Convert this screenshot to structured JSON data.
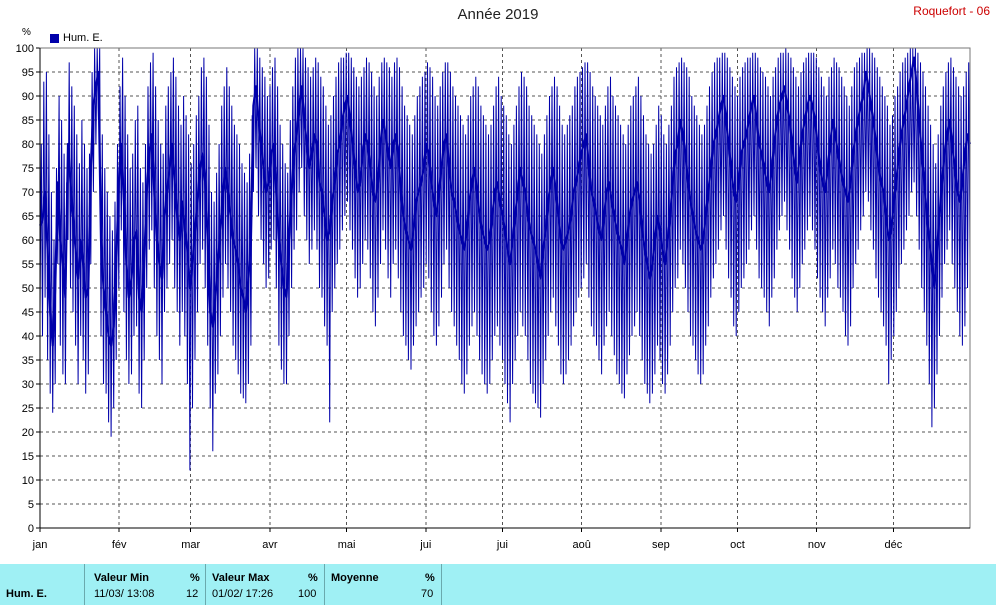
{
  "header": {
    "title": "Année 2019",
    "station": "Roquefort - 06",
    "y_unit": "%",
    "legend_label": "Hum. E."
  },
  "colors": {
    "series": "#0000aa",
    "grid": "#555555",
    "station": "#cc0000",
    "stats_bg": "#9ff0f4"
  },
  "chart_data": {
    "type": "line",
    "title": "Année 2019",
    "xlabel": "",
    "ylabel": "%",
    "ylim": [
      0,
      100
    ],
    "yticks": [
      0,
      5,
      10,
      15,
      20,
      25,
      30,
      35,
      40,
      45,
      50,
      55,
      60,
      65,
      70,
      75,
      80,
      85,
      90,
      95,
      100
    ],
    "x_tick_labels": [
      "jan",
      "fév",
      "mar",
      "avr",
      "mai",
      "jui",
      "jui",
      "aoû",
      "sep",
      "oct",
      "nov",
      "déc"
    ],
    "x_tick_days": [
      1,
      32,
      60,
      91,
      121,
      152,
      182,
      213,
      244,
      274,
      305,
      335
    ],
    "xlim_days": [
      1,
      365
    ],
    "grid": true,
    "legend_position": "top-left",
    "series": [
      {
        "name": "Hum. E.",
        "style": "daily min-max envelope (thin) and daily mean (thick)",
        "daily_mean": [
          63,
          64,
          70,
          58,
          45,
          38,
          50,
          72,
          60,
          55,
          48,
          80,
          72,
          65,
          58,
          52,
          60,
          55,
          48,
          50,
          75,
          88,
          92,
          95,
          60,
          50,
          45,
          40,
          38,
          42,
          55,
          72,
          80,
          68,
          55,
          48,
          52,
          60,
          62,
          48,
          45,
          55,
          70,
          78,
          82,
          70,
          60,
          55,
          52,
          65,
          70,
          75,
          80,
          72,
          65,
          60,
          68,
          62,
          58,
          50,
          55,
          62,
          68,
          75,
          78,
          72,
          60,
          45,
          42,
          48,
          55,
          62,
          70,
          75,
          70,
          65,
          60,
          58,
          55,
          50,
          48,
          45,
          52,
          60,
          88,
          92,
          85,
          80,
          75,
          70,
          72,
          78,
          80,
          70,
          60,
          55,
          50,
          48,
          60,
          70,
          78,
          82,
          88,
          92,
          85,
          80,
          75,
          78,
          82,
          80,
          72,
          70,
          65,
          60,
          62,
          68,
          72,
          78,
          80,
          85,
          88,
          90,
          85,
          80,
          75,
          70,
          72,
          78,
          82,
          80,
          75,
          70,
          68,
          72,
          80,
          85,
          82,
          78,
          75,
          80,
          82,
          78,
          70,
          65,
          62,
          60,
          58,
          62,
          68,
          70,
          72,
          75,
          80,
          78,
          72,
          68,
          65,
          70,
          75,
          80,
          82,
          75,
          70,
          68,
          65,
          62,
          60,
          58,
          62,
          68,
          72,
          75,
          70,
          65,
          62,
          60,
          58,
          60,
          65,
          70,
          72,
          68,
          65,
          62,
          58,
          55,
          60,
          65,
          70,
          75,
          72,
          70,
          65,
          62,
          60,
          58,
          55,
          52,
          58,
          62,
          68,
          72,
          75,
          70,
          65,
          60,
          58,
          60,
          62,
          65,
          70,
          72,
          75,
          78,
          80,
          82,
          75,
          70,
          68,
          65,
          62,
          60,
          65,
          70,
          72,
          68,
          65,
          62,
          60,
          58,
          55,
          60,
          65,
          68,
          70,
          72,
          68,
          62,
          58,
          55,
          52,
          55,
          60,
          65,
          62,
          58,
          55,
          60,
          65,
          72,
          78,
          80,
          85,
          82,
          78,
          72,
          68,
          65,
          62,
          60,
          58,
          60,
          65,
          70,
          75,
          80,
          82,
          85,
          88,
          90,
          85,
          80,
          75,
          70,
          68,
          72,
          78,
          80,
          82,
          85,
          88,
          90,
          85,
          80,
          78,
          75,
          72,
          70,
          75,
          80,
          85,
          88,
          90,
          92,
          88,
          85,
          80,
          75,
          72,
          78,
          82,
          85,
          88,
          90,
          88,
          85,
          80,
          75,
          72,
          70,
          75,
          80,
          85,
          82,
          78,
          75,
          72,
          70,
          68,
          72,
          78,
          82,
          85,
          88,
          90,
          95,
          92,
          88,
          85,
          80,
          75,
          72,
          70,
          65,
          60,
          62,
          68,
          72,
          78,
          82,
          85,
          88,
          92,
          95,
          98,
          92,
          85,
          78,
          72,
          65,
          60,
          55,
          50,
          58,
          65,
          72,
          78,
          82,
          85,
          80,
          75,
          70,
          68,
          72,
          78,
          82,
          80
        ],
        "daily_min": [
          45,
          40,
          48,
          35,
          28,
          24,
          30,
          55,
          38,
          32,
          30,
          60,
          50,
          45,
          38,
          30,
          40,
          35,
          28,
          32,
          55,
          70,
          80,
          85,
          40,
          30,
          28,
          22,
          19,
          25,
          35,
          50,
          62,
          45,
          35,
          30,
          32,
          40,
          42,
          28,
          25,
          35,
          50,
          58,
          62,
          50,
          40,
          35,
          30,
          45,
          50,
          55,
          60,
          50,
          45,
          38,
          45,
          40,
          30,
          12,
          25,
          35,
          45,
          55,
          58,
          50,
          38,
          25,
          16,
          28,
          32,
          40,
          48,
          55,
          50,
          45,
          38,
          35,
          32,
          28,
          27,
          26,
          30,
          38,
          70,
          75,
          65,
          60,
          55,
          50,
          52,
          58,
          60,
          50,
          38,
          33,
          30,
          30,
          40,
          50,
          58,
          62,
          70,
          75,
          65,
          60,
          55,
          58,
          62,
          58,
          50,
          48,
          42,
          38,
          22,
          45,
          50,
          55,
          58,
          62,
          65,
          68,
          62,
          58,
          52,
          48,
          50,
          55,
          60,
          58,
          52,
          45,
          42,
          48,
          55,
          62,
          58,
          52,
          48,
          55,
          58,
          52,
          45,
          40,
          38,
          35,
          33,
          38,
          42,
          45,
          48,
          50,
          55,
          52,
          45,
          40,
          38,
          42,
          48,
          55,
          58,
          50,
          45,
          42,
          38,
          35,
          30,
          28,
          32,
          38,
          42,
          45,
          40,
          35,
          32,
          30,
          28,
          30,
          35,
          40,
          42,
          38,
          35,
          30,
          26,
          22,
          30,
          35,
          40,
          45,
          42,
          40,
          35,
          30,
          28,
          26,
          25,
          23,
          30,
          35,
          40,
          45,
          48,
          42,
          38,
          32,
          30,
          32,
          35,
          38,
          42,
          45,
          48,
          50,
          52,
          55,
          48,
          42,
          40,
          38,
          35,
          32,
          38,
          42,
          45,
          40,
          36,
          32,
          30,
          28,
          27,
          32,
          36,
          40,
          42,
          45,
          40,
          35,
          30,
          28,
          26,
          28,
          32,
          38,
          35,
          30,
          28,
          32,
          38,
          45,
          50,
          52,
          58,
          55,
          50,
          45,
          40,
          38,
          35,
          32,
          30,
          32,
          38,
          42,
          48,
          52,
          55,
          58,
          62,
          65,
          58,
          52,
          48,
          42,
          40,
          45,
          50,
          52,
          55,
          58,
          62,
          65,
          58,
          52,
          50,
          48,
          45,
          42,
          48,
          52,
          58,
          62,
          65,
          68,
          62,
          58,
          52,
          48,
          45,
          50,
          55,
          58,
          62,
          65,
          62,
          58,
          52,
          48,
          45,
          42,
          48,
          52,
          58,
          55,
          50,
          48,
          45,
          40,
          38,
          42,
          50,
          55,
          58,
          62,
          65,
          70,
          68,
          62,
          58,
          52,
          48,
          45,
          42,
          38,
          30,
          35,
          40,
          45,
          50,
          55,
          58,
          62,
          65,
          70,
          72,
          65,
          58,
          50,
          45,
          38,
          30,
          21,
          25,
          32,
          40,
          48,
          55,
          58,
          62,
          55,
          50,
          45,
          40,
          38,
          42,
          50,
          55,
          58
        ],
        "daily_max": [
          80,
          93,
          95,
          82,
          70,
          60,
          75,
          90,
          85,
          78,
          72,
          97,
          92,
          88,
          82,
          76,
          85,
          80,
          75,
          78,
          95,
          100,
          100,
          100,
          82,
          75,
          70,
          65,
          62,
          68,
          80,
          92,
          98,
          90,
          82,
          75,
          78,
          85,
          88,
          75,
          72,
          80,
          92,
          97,
          99,
          92,
          85,
          80,
          78,
          88,
          92,
          95,
          98,
          94,
          88,
          84,
          90,
          86,
          82,
          76,
          80,
          86,
          90,
          96,
          98,
          94,
          84,
          70,
          68,
          74,
          80,
          88,
          92,
          96,
          92,
          88,
          84,
          82,
          80,
          76,
          74,
          72,
          78,
          86,
          100,
          100,
          98,
          96,
          94,
          90,
          92,
          96,
          98,
          92,
          84,
          80,
          76,
          74,
          85,
          92,
          98,
          100,
          100,
          100,
          98,
          96,
          94,
          96,
          98,
          97,
          94,
          92,
          88,
          84,
          86,
          90,
          94,
          97,
          98,
          98,
          99,
          99,
          98,
          96,
          94,
          92,
          94,
          96,
          98,
          97,
          95,
          92,
          90,
          94,
          97,
          98,
          97,
          96,
          94,
          97,
          98,
          96,
          92,
          88,
          86,
          84,
          82,
          86,
          90,
          92,
          94,
          95,
          97,
          96,
          94,
          90,
          88,
          92,
          95,
          97,
          97,
          95,
          92,
          90,
          88,
          86,
          84,
          82,
          86,
          90,
          92,
          94,
          92,
          88,
          86,
          84,
          82,
          84,
          88,
          92,
          94,
          90,
          88,
          86,
          82,
          80,
          84,
          88,
          92,
          95,
          94,
          92,
          88,
          86,
          84,
          82,
          80,
          78,
          82,
          86,
          90,
          92,
          94,
          92,
          88,
          84,
          82,
          84,
          86,
          88,
          92,
          94,
          95,
          96,
          97,
          97,
          95,
          92,
          90,
          88,
          86,
          84,
          88,
          92,
          94,
          90,
          88,
          86,
          84,
          82,
          80,
          84,
          88,
          90,
          92,
          94,
          90,
          86,
          82,
          80,
          78,
          80,
          84,
          88,
          86,
          82,
          80,
          84,
          88,
          94,
          96,
          97,
          98,
          97,
          96,
          94,
          90,
          88,
          86,
          84,
          82,
          84,
          88,
          92,
          95,
          97,
          98,
          98,
          99,
          99,
          98,
          96,
          94,
          92,
          90,
          94,
          96,
          97,
          98,
          98,
          99,
          99,
          98,
          96,
          95,
          94,
          92,
          90,
          94,
          96,
          98,
          99,
          99,
          100,
          99,
          98,
          96,
          94,
          92,
          95,
          97,
          98,
          99,
          99,
          99,
          98,
          96,
          94,
          92,
          90,
          94,
          96,
          98,
          97,
          96,
          94,
          92,
          90,
          88,
          92,
          96,
          97,
          98,
          99,
          99,
          100,
          100,
          99,
          98,
          96,
          94,
          92,
          90,
          88,
          84,
          86,
          90,
          92,
          95,
          97,
          98,
          99,
          100,
          100,
          100,
          99,
          97,
          95,
          92,
          88,
          84,
          80,
          76,
          82,
          88,
          92,
          95,
          97,
          98,
          96,
          94,
          92,
          90,
          92,
          95,
          97,
          96
        ]
      }
    ]
  },
  "stats": {
    "row_label": "Hum. E.",
    "min_header": "Valeur Min",
    "min_unit": "%",
    "min_datetime": "11/03/  13:08",
    "min_value": "12",
    "max_header": "Valeur Max",
    "max_unit": "%",
    "max_datetime": "01/02/  17:26",
    "max_value": "100",
    "avg_header": "Moyenne",
    "avg_unit": "%",
    "avg_value": "70"
  }
}
